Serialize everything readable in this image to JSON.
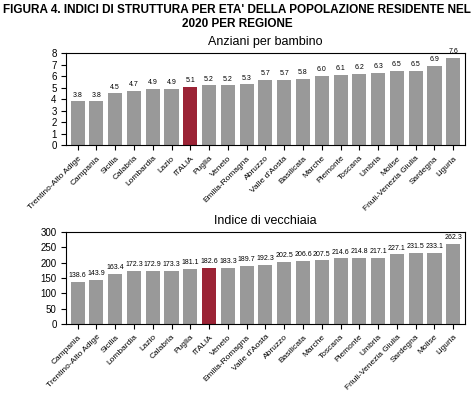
{
  "title": "FIGURA 4. INDICI DI STRUTTURA PER ETA' DELLA POPOLAZIONE RESIDENTE NEL 2020 PER REGIONE",
  "chart_data": [
    {
      "type": "bar",
      "title": "Anziani per bambino",
      "categories": [
        "Trentino-Alto Adige",
        "Campania",
        "Sicilia",
        "Calabria",
        "Lombardia",
        "Lazio",
        "ITALIA",
        "Puglia",
        "Veneto",
        "Emilia-Romagna",
        "Abruzzo",
        "Valle d'Aosta",
        "Basilicata",
        "Marche",
        "Piemonte",
        "Toscana",
        "Umbria",
        "Molise",
        "Friuli-Venezia Giulia",
        "Sardegna",
        "Liguria"
      ],
      "values": [
        3.8,
        3.8,
        4.5,
        4.7,
        4.9,
        4.9,
        5.1,
        5.2,
        5.2,
        5.3,
        5.7,
        5.7,
        5.8,
        6.0,
        6.1,
        6.2,
        6.3,
        6.5,
        6.5,
        6.9,
        7.6
      ],
      "colors": [
        "#999999",
        "#999999",
        "#999999",
        "#999999",
        "#999999",
        "#999999",
        "#9b2335",
        "#999999",
        "#999999",
        "#999999",
        "#999999",
        "#999999",
        "#999999",
        "#999999",
        "#999999",
        "#999999",
        "#999999",
        "#999999",
        "#999999",
        "#999999",
        "#999999"
      ],
      "ylim": [
        0,
        8
      ],
      "yticks": [
        0,
        1,
        2,
        3,
        4,
        5,
        6,
        7,
        8
      ],
      "data_labels": true,
      "grid": false
    },
    {
      "type": "bar",
      "title": "Indice di vecchiaia",
      "categories": [
        "Campania",
        "Trentino-Alto Adige",
        "Sicilia",
        "Lombardia",
        "Lazio",
        "Calabria",
        "Puglia",
        "ITALIA",
        "Veneto",
        "Emilia-Romagna",
        "Valle d'Aosta",
        "Abruzzo",
        "Basilicata",
        "Marche",
        "Toscana",
        "Piemonte",
        "Umbria",
        "Friuli-Venezia Giulia",
        "Sardegna",
        "Molise",
        "Liguria"
      ],
      "values": [
        138.6,
        143.9,
        163.4,
        172.3,
        172.9,
        173.3,
        181.1,
        182.6,
        183.3,
        189.7,
        192.3,
        202.5,
        206.6,
        207.5,
        214.6,
        214.8,
        217.1,
        227.1,
        231.5,
        233.1,
        262.3
      ],
      "colors": [
        "#999999",
        "#999999",
        "#999999",
        "#999999",
        "#999999",
        "#999999",
        "#999999",
        "#9b2335",
        "#999999",
        "#999999",
        "#999999",
        "#999999",
        "#999999",
        "#999999",
        "#999999",
        "#999999",
        "#999999",
        "#999999",
        "#999999",
        "#999999",
        "#999999"
      ],
      "ylim": [
        0,
        300
      ],
      "yticks": [
        0,
        50,
        100,
        150,
        200,
        250,
        300
      ],
      "data_labels": true,
      "grid": false
    }
  ]
}
